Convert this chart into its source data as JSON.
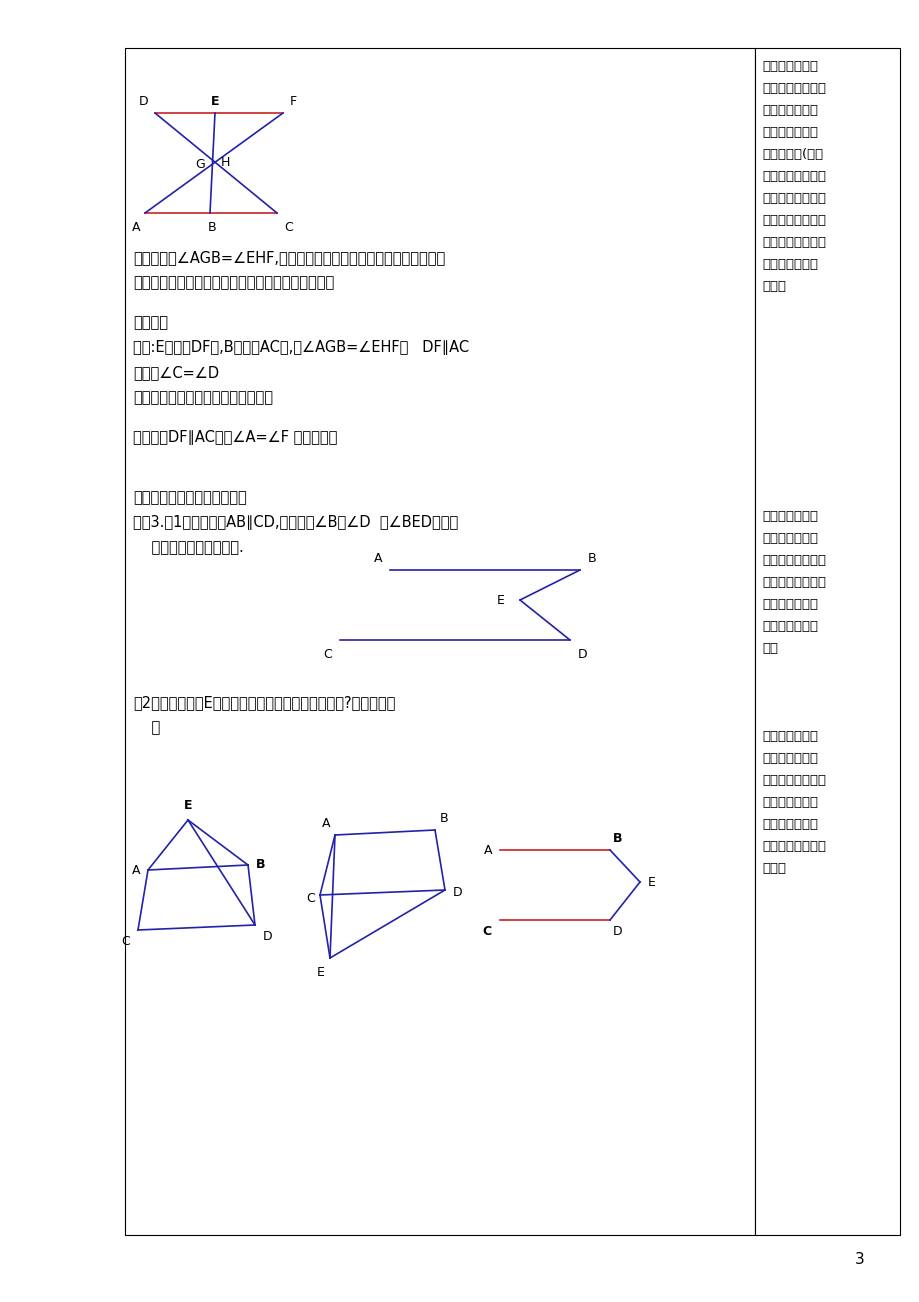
{
  "page_bg": "#ffffff",
  "border_color": "#000000",
  "blue_color": "#2222aa",
  "red_color": "#cc2222",
  "page_number": "3",
  "para1": "分析：根据∠AGB=∠EHF,你能得到什么结论？如何转化条件？得到的",
  "para1b": "结论和我们要证得结论有什么关系？你是怎么想的？",
  "para2": "变换条件",
  "para3": "如图:E在直线DF上,B在直线AC上,若∠AGB=∠EHF，   DF∥AC",
  "para4": "求证：∠C=∠D",
  "para5": "如何思考和证明。并写出证明过程。",
  "para6": "若把条件DF∥AC改为∠A=∠F 怎样证明？",
  "para7_bold": "添加辅助线，构造为基本图形",
  "para8": "问题3.（1）如图，若AB∥CD,你能确定∠B、∠D  与∠BED的大小",
  "para8b": "    关系吗？说说你的看法.",
  "para9": "（2）如果改变点E的位置，它们的数量关系会改变吗?说明你的理",
  "para9b": "    由",
  "right_text1": "件不是直接说明\n结论成立的条件，\n因此必须根据这\n些已知条件结合\n学过的知识(如对\n顶角相等，角平分\n线，垂直定义，互\n余，互补等）设法\n转化这些条件，使\n之成为可利用的\n条件。",
  "right_text2": "题目条件和结论\n进行变换让学生\n分析出证明思路，\n写出证明过程，会\n用分析法和综合\n法进行思考和证\n明。",
  "right_text3": "当题目中条件不\n能直接用并且转\n化后也不能用时，\n或图形不完整时\n需要通过添加辅\n助线，构造出基本\n图形。"
}
